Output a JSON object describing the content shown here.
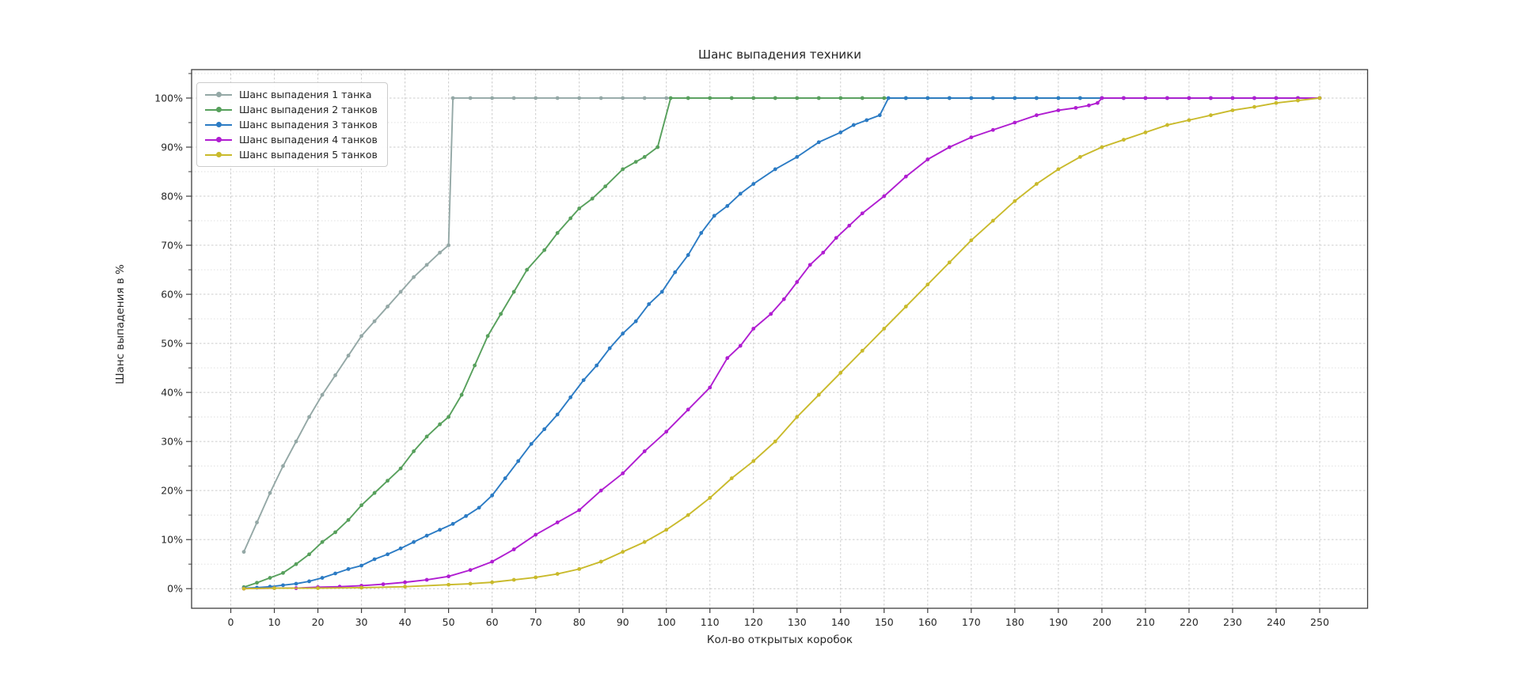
{
  "figure": {
    "background": "#ffffff",
    "text_color": "#262626"
  },
  "chart_data": {
    "type": "line",
    "title": "Шанс выпадения техники",
    "xlabel": "Кол-во открытых коробок",
    "ylabel": "Шанс выпадения в %",
    "xlim": [
      -9,
      261
    ],
    "ylim": [
      -4,
      105.8
    ],
    "x_ticks_major": [
      0,
      10,
      20,
      30,
      40,
      50,
      60,
      70,
      80,
      90,
      100,
      110,
      120,
      130,
      140,
      150,
      160,
      170,
      180,
      190,
      200,
      210,
      220,
      230,
      240,
      250
    ],
    "y_ticks_major": [
      0,
      10,
      20,
      30,
      40,
      50,
      60,
      70,
      80,
      90,
      100
    ],
    "y_ticks_minor": [
      5,
      15,
      25,
      35,
      45,
      55,
      65,
      75,
      85,
      95,
      105
    ],
    "y_tick_suffix": "%",
    "grid": {
      "x_major": true,
      "y_major": true,
      "y_minor": true,
      "major_color": "#cccccc",
      "minor_color": "#dddddd"
    },
    "legend_position": "upper-left",
    "series": [
      {
        "name": "Шанс выпадения 1 танка",
        "color": "#94a8a6",
        "points": [
          [
            3,
            7.5
          ],
          [
            6,
            13.5
          ],
          [
            9,
            19.5
          ],
          [
            12,
            25
          ],
          [
            15,
            30
          ],
          [
            18,
            35
          ],
          [
            21,
            39.5
          ],
          [
            24,
            43.5
          ],
          [
            27,
            47.5
          ],
          [
            30,
            51.5
          ],
          [
            33,
            54.5
          ],
          [
            36,
            57.5
          ],
          [
            39,
            60.5
          ],
          [
            42,
            63.5
          ],
          [
            45,
            66
          ],
          [
            48,
            68.5
          ],
          [
            50,
            70
          ],
          [
            51,
            100
          ],
          [
            55,
            100
          ],
          [
            60,
            100
          ],
          [
            65,
            100
          ],
          [
            70,
            100
          ],
          [
            75,
            100
          ],
          [
            80,
            100
          ],
          [
            85,
            100
          ],
          [
            90,
            100
          ],
          [
            95,
            100
          ],
          [
            100,
            100
          ],
          [
            105,
            100
          ],
          [
            110,
            100
          ],
          [
            115,
            100
          ],
          [
            120,
            100
          ],
          [
            125,
            100
          ],
          [
            130,
            100
          ],
          [
            135,
            100
          ],
          [
            140,
            100
          ],
          [
            145,
            100
          ],
          [
            150,
            100
          ],
          [
            155,
            100
          ],
          [
            160,
            100
          ],
          [
            165,
            100
          ],
          [
            170,
            100
          ],
          [
            175,
            100
          ],
          [
            180,
            100
          ],
          [
            185,
            100
          ],
          [
            190,
            100
          ],
          [
            195,
            100
          ],
          [
            200,
            100
          ],
          [
            205,
            100
          ],
          [
            210,
            100
          ],
          [
            215,
            100
          ],
          [
            220,
            100
          ],
          [
            225,
            100
          ],
          [
            230,
            100
          ],
          [
            235,
            100
          ],
          [
            240,
            100
          ],
          [
            245,
            100
          ],
          [
            250,
            100
          ]
        ]
      },
      {
        "name": "Шанс выпадения 2 танков",
        "color": "#57a05c",
        "points": [
          [
            3,
            0.3
          ],
          [
            6,
            1.2
          ],
          [
            9,
            2.2
          ],
          [
            12,
            3.2
          ],
          [
            15,
            5
          ],
          [
            18,
            7
          ],
          [
            21,
            9.5
          ],
          [
            24,
            11.5
          ],
          [
            27,
            14
          ],
          [
            30,
            17
          ],
          [
            33,
            19.5
          ],
          [
            36,
            22
          ],
          [
            39,
            24.5
          ],
          [
            42,
            28
          ],
          [
            45,
            31
          ],
          [
            48,
            33.5
          ],
          [
            50,
            35
          ],
          [
            53,
            39.5
          ],
          [
            56,
            45.5
          ],
          [
            59,
            51.5
          ],
          [
            62,
            56
          ],
          [
            65,
            60.5
          ],
          [
            68,
            65
          ],
          [
            72,
            69
          ],
          [
            75,
            72.5
          ],
          [
            78,
            75.5
          ],
          [
            80,
            77.5
          ],
          [
            83,
            79.5
          ],
          [
            86,
            82
          ],
          [
            90,
            85.5
          ],
          [
            93,
            87
          ],
          [
            95,
            88
          ],
          [
            98,
            90
          ],
          [
            101,
            100
          ],
          [
            105,
            100
          ],
          [
            110,
            100
          ],
          [
            115,
            100
          ],
          [
            120,
            100
          ],
          [
            125,
            100
          ],
          [
            130,
            100
          ],
          [
            135,
            100
          ],
          [
            140,
            100
          ],
          [
            145,
            100
          ],
          [
            150,
            100
          ],
          [
            155,
            100
          ],
          [
            160,
            100
          ],
          [
            165,
            100
          ],
          [
            170,
            100
          ],
          [
            175,
            100
          ],
          [
            180,
            100
          ],
          [
            185,
            100
          ],
          [
            190,
            100
          ],
          [
            195,
            100
          ],
          [
            200,
            100
          ],
          [
            205,
            100
          ],
          [
            210,
            100
          ],
          [
            215,
            100
          ],
          [
            220,
            100
          ],
          [
            225,
            100
          ],
          [
            230,
            100
          ],
          [
            235,
            100
          ],
          [
            240,
            100
          ],
          [
            245,
            100
          ],
          [
            250,
            100
          ]
        ]
      },
      {
        "name": "Шанс выпадения 3 танков",
        "color": "#2b7bc4",
        "points": [
          [
            3,
            0.1
          ],
          [
            6,
            0.2
          ],
          [
            9,
            0.4
          ],
          [
            12,
            0.7
          ],
          [
            15,
            1
          ],
          [
            18,
            1.5
          ],
          [
            21,
            2.2
          ],
          [
            24,
            3.1
          ],
          [
            27,
            4
          ],
          [
            30,
            4.7
          ],
          [
            33,
            6
          ],
          [
            36,
            7
          ],
          [
            39,
            8.2
          ],
          [
            42,
            9.5
          ],
          [
            45,
            10.8
          ],
          [
            48,
            12
          ],
          [
            51,
            13.2
          ],
          [
            54,
            14.8
          ],
          [
            57,
            16.5
          ],
          [
            60,
            19
          ],
          [
            63,
            22.5
          ],
          [
            66,
            26
          ],
          [
            69,
            29.5
          ],
          [
            72,
            32.5
          ],
          [
            75,
            35.5
          ],
          [
            78,
            39
          ],
          [
            81,
            42.5
          ],
          [
            84,
            45.5
          ],
          [
            87,
            49
          ],
          [
            90,
            52
          ],
          [
            93,
            54.5
          ],
          [
            96,
            58
          ],
          [
            99,
            60.5
          ],
          [
            102,
            64.5
          ],
          [
            105,
            68
          ],
          [
            108,
            72.5
          ],
          [
            111,
            76
          ],
          [
            114,
            78
          ],
          [
            117,
            80.5
          ],
          [
            120,
            82.5
          ],
          [
            125,
            85.5
          ],
          [
            130,
            88
          ],
          [
            135,
            91
          ],
          [
            140,
            93
          ],
          [
            143,
            94.5
          ],
          [
            146,
            95.5
          ],
          [
            149,
            96.5
          ],
          [
            151,
            100
          ],
          [
            155,
            100
          ],
          [
            160,
            100
          ],
          [
            165,
            100
          ],
          [
            170,
            100
          ],
          [
            175,
            100
          ],
          [
            180,
            100
          ],
          [
            185,
            100
          ],
          [
            190,
            100
          ],
          [
            195,
            100
          ],
          [
            200,
            100
          ],
          [
            205,
            100
          ],
          [
            210,
            100
          ],
          [
            215,
            100
          ],
          [
            220,
            100
          ],
          [
            225,
            100
          ],
          [
            230,
            100
          ],
          [
            235,
            100
          ],
          [
            240,
            100
          ],
          [
            245,
            100
          ],
          [
            250,
            100
          ]
        ]
      },
      {
        "name": "Шанс выпадения 4 танков",
        "color": "#b01dd1",
        "points": [
          [
            3,
            0
          ],
          [
            10,
            0.1
          ],
          [
            15,
            0.1
          ],
          [
            20,
            0.3
          ],
          [
            25,
            0.4
          ],
          [
            30,
            0.6
          ],
          [
            35,
            0.9
          ],
          [
            40,
            1.3
          ],
          [
            45,
            1.8
          ],
          [
            50,
            2.5
          ],
          [
            55,
            3.8
          ],
          [
            60,
            5.5
          ],
          [
            65,
            8
          ],
          [
            70,
            11
          ],
          [
            75,
            13.5
          ],
          [
            80,
            16
          ],
          [
            85,
            20
          ],
          [
            90,
            23.5
          ],
          [
            95,
            28
          ],
          [
            100,
            32
          ],
          [
            105,
            36.5
          ],
          [
            110,
            41
          ],
          [
            114,
            47
          ],
          [
            117,
            49.5
          ],
          [
            120,
            53
          ],
          [
            124,
            56
          ],
          [
            127,
            59
          ],
          [
            130,
            62.5
          ],
          [
            133,
            66
          ],
          [
            136,
            68.5
          ],
          [
            139,
            71.5
          ],
          [
            142,
            74
          ],
          [
            145,
            76.5
          ],
          [
            150,
            80
          ],
          [
            155,
            84
          ],
          [
            160,
            87.5
          ],
          [
            165,
            90
          ],
          [
            170,
            92
          ],
          [
            175,
            93.5
          ],
          [
            180,
            95
          ],
          [
            185,
            96.5
          ],
          [
            190,
            97.5
          ],
          [
            194,
            98
          ],
          [
            197,
            98.5
          ],
          [
            199,
            99
          ],
          [
            200,
            100
          ],
          [
            205,
            100
          ],
          [
            210,
            100
          ],
          [
            215,
            100
          ],
          [
            220,
            100
          ],
          [
            225,
            100
          ],
          [
            230,
            100
          ],
          [
            235,
            100
          ],
          [
            240,
            100
          ],
          [
            245,
            100
          ],
          [
            250,
            100
          ]
        ]
      },
      {
        "name": "Шанс выпадения 5 танков",
        "color": "#c9ba2b",
        "points": [
          [
            3,
            0
          ],
          [
            10,
            0.1
          ],
          [
            20,
            0.1
          ],
          [
            30,
            0.2
          ],
          [
            40,
            0.4
          ],
          [
            50,
            0.8
          ],
          [
            55,
            1
          ],
          [
            60,
            1.3
          ],
          [
            65,
            1.8
          ],
          [
            70,
            2.3
          ],
          [
            75,
            3
          ],
          [
            80,
            4
          ],
          [
            85,
            5.5
          ],
          [
            90,
            7.5
          ],
          [
            95,
            9.5
          ],
          [
            100,
            12
          ],
          [
            105,
            15
          ],
          [
            110,
            18.5
          ],
          [
            115,
            22.5
          ],
          [
            120,
            26
          ],
          [
            125,
            30
          ],
          [
            130,
            35
          ],
          [
            135,
            39.5
          ],
          [
            140,
            44
          ],
          [
            145,
            48.5
          ],
          [
            150,
            53
          ],
          [
            155,
            57.5
          ],
          [
            160,
            62
          ],
          [
            165,
            66.5
          ],
          [
            170,
            71
          ],
          [
            175,
            75
          ],
          [
            180,
            79
          ],
          [
            185,
            82.5
          ],
          [
            190,
            85.5
          ],
          [
            195,
            88
          ],
          [
            200,
            90
          ],
          [
            205,
            91.5
          ],
          [
            210,
            93
          ],
          [
            215,
            94.5
          ],
          [
            220,
            95.5
          ],
          [
            225,
            96.5
          ],
          [
            230,
            97.5
          ],
          [
            235,
            98.2
          ],
          [
            240,
            99
          ],
          [
            245,
            99.5
          ],
          [
            250,
            100
          ]
        ]
      }
    ]
  }
}
